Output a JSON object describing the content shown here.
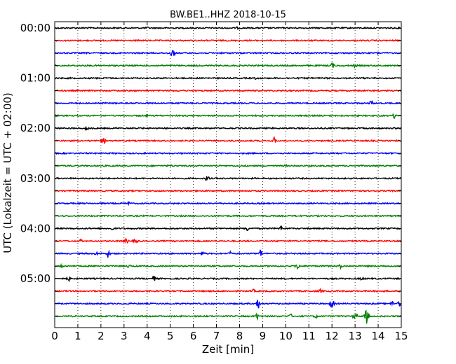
{
  "chart_data": {
    "type": "line",
    "title": "BW.BE1..HHZ 2018-10-15",
    "xlabel": "Zeit  [min]",
    "ylabel": "UTC (Lokalzeit = UTC + 02:00)",
    "xlim": [
      0,
      15
    ],
    "x_ticks": [
      "0",
      "1",
      "2",
      "3",
      "4",
      "5",
      "6",
      "7",
      "8",
      "9",
      "10",
      "11",
      "12",
      "13",
      "14",
      "15"
    ],
    "y_ticks": [
      "00:00",
      "01:00",
      "02:00",
      "03:00",
      "04:00",
      "05:00"
    ],
    "grid": "vertical dotted lines at each minute",
    "trace_interval_minutes": 15,
    "colors": [
      "#000000",
      "#ff0000",
      "#0000ff",
      "#008000"
    ],
    "series": [
      {
        "start": "00:00",
        "color": "#000000",
        "events": [
          [
            4.0,
            2
          ],
          [
            7.9,
            2
          ]
        ]
      },
      {
        "start": "00:15",
        "color": "#ff0000",
        "events": []
      },
      {
        "start": "00:30",
        "color": "#0000ff",
        "events": [
          [
            5.1,
            7
          ],
          [
            14.0,
            2
          ]
        ]
      },
      {
        "start": "00:45",
        "color": "#008000",
        "events": [
          [
            12.0,
            5
          ],
          [
            13.0,
            3
          ]
        ]
      },
      {
        "start": "01:00",
        "color": "#000000",
        "events": [
          [
            8.7,
            2
          ]
        ]
      },
      {
        "start": "01:15",
        "color": "#ff0000",
        "events": []
      },
      {
        "start": "01:30",
        "color": "#0000ff",
        "events": [
          [
            13.7,
            4
          ]
        ]
      },
      {
        "start": "01:45",
        "color": "#008000",
        "events": [
          [
            4.0,
            2
          ],
          [
            14.7,
            4
          ]
        ]
      },
      {
        "start": "02:00",
        "color": "#000000",
        "events": [
          [
            1.4,
            4
          ]
        ]
      },
      {
        "start": "02:15",
        "color": "#ff0000",
        "events": [
          [
            2.1,
            5
          ],
          [
            9.5,
            5
          ]
        ]
      },
      {
        "start": "02:30",
        "color": "#0000ff",
        "events": []
      },
      {
        "start": "02:45",
        "color": "#008000",
        "events": [
          [
            5.0,
            2
          ],
          [
            10.0,
            2
          ]
        ]
      },
      {
        "start": "03:00",
        "color": "#000000",
        "events": [
          [
            6.6,
            5
          ]
        ]
      },
      {
        "start": "03:15",
        "color": "#ff0000",
        "events": []
      },
      {
        "start": "03:30",
        "color": "#0000ff",
        "events": [
          [
            3.2,
            3
          ]
        ]
      },
      {
        "start": "03:45",
        "color": "#008000",
        "events": []
      },
      {
        "start": "04:00",
        "color": "#000000",
        "events": [
          [
            2.5,
            3
          ],
          [
            8.3,
            5
          ],
          [
            9.8,
            4
          ]
        ]
      },
      {
        "start": "04:15",
        "color": "#ff0000",
        "events": [
          [
            1.1,
            3
          ],
          [
            3.1,
            4
          ],
          [
            3.5,
            4
          ]
        ]
      },
      {
        "start": "04:30",
        "color": "#0000ff",
        "events": [
          [
            1.8,
            3
          ],
          [
            2.3,
            6
          ],
          [
            6.4,
            4
          ],
          [
            7.6,
            3
          ],
          [
            8.9,
            6
          ]
        ]
      },
      {
        "start": "04:45",
        "color": "#008000",
        "events": [
          [
            0.3,
            3
          ],
          [
            3.2,
            3
          ],
          [
            10.5,
            5
          ],
          [
            12.4,
            4
          ]
        ]
      },
      {
        "start": "05:00",
        "color": "#000000",
        "events": [
          [
            0.6,
            4
          ],
          [
            4.3,
            4
          ],
          [
            13.3,
            3
          ]
        ]
      },
      {
        "start": "05:15",
        "color": "#ff0000",
        "events": [
          [
            8.6,
            3
          ],
          [
            11.5,
            3
          ]
        ]
      },
      {
        "start": "05:30",
        "color": "#0000ff",
        "events": [
          [
            8.8,
            8
          ],
          [
            12.0,
            8
          ],
          [
            14.6,
            4
          ],
          [
            14.9,
            5
          ]
        ]
      },
      {
        "start": "05:45",
        "color": "#008000",
        "events": [
          [
            8.8,
            6
          ],
          [
            10.2,
            4
          ],
          [
            11.3,
            3
          ],
          [
            13.0,
            6
          ],
          [
            13.5,
            11
          ]
        ]
      }
    ]
  }
}
